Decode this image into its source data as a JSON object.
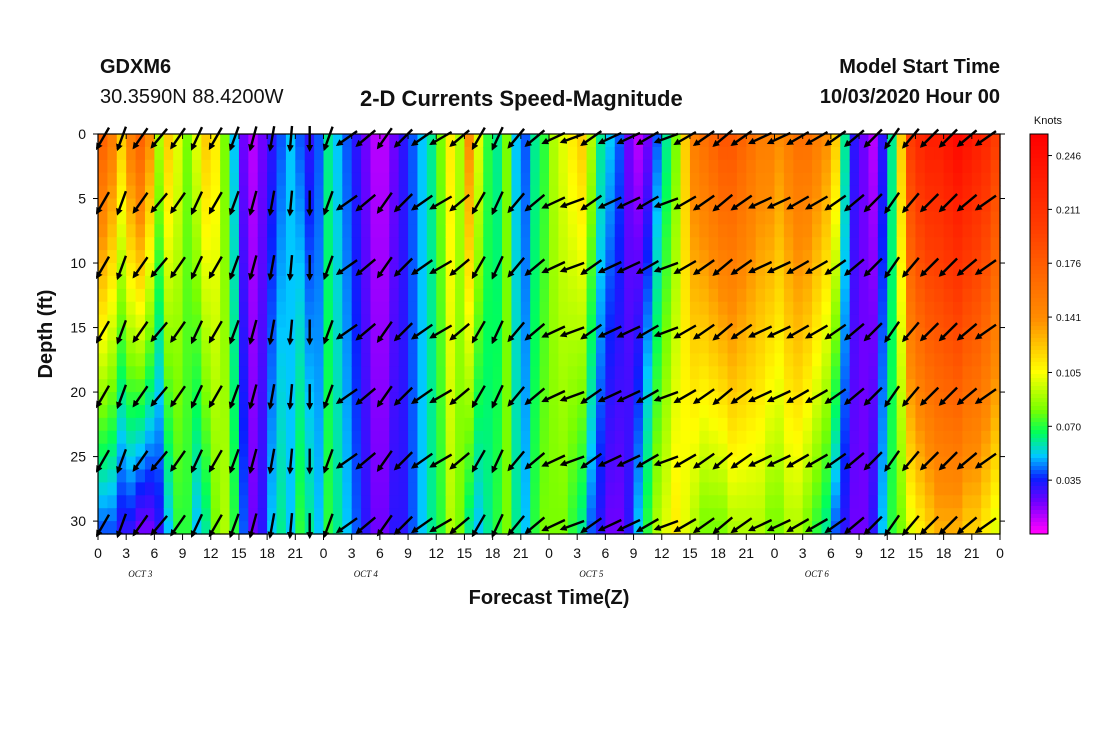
{
  "header": {
    "station": "GDXM6",
    "coords": "30.3590N 88.4200W",
    "title": "2-D Currents Speed-Magnitude",
    "model_start_label": "Model Start Time",
    "model_start_value": "10/03/2020 Hour 00"
  },
  "chart_data": {
    "type": "heatmap",
    "title": "2-D Currents Speed-Magnitude",
    "xlabel": "Forecast Time(Z)",
    "ylabel": "Depth (ft)",
    "x_tick_labels": [
      "0",
      "3",
      "6",
      "9",
      "12",
      "15",
      "18",
      "21",
      "0",
      "3",
      "6",
      "9",
      "12",
      "15",
      "18",
      "21",
      "0",
      "3",
      "6",
      "9",
      "12",
      "15",
      "18",
      "21",
      "0",
      "3",
      "6",
      "9",
      "12",
      "15",
      "18",
      "21",
      "0"
    ],
    "day_labels": [
      "OCT 3",
      "OCT 4",
      "OCT 5",
      "OCT 6"
    ],
    "y_ticks": [
      0,
      5,
      10,
      15,
      20,
      25,
      30
    ],
    "ylim": [
      31,
      0
    ],
    "xlim_hours": [
      0,
      96
    ],
    "colorbar": {
      "unit": "Knots",
      "ticks": [
        "0.246",
        "0.211",
        "0.176",
        "0.141",
        "0.105",
        "0.070",
        "0.035"
      ],
      "range": [
        0,
        0.26
      ]
    },
    "hourly_speed_surface": [
      0.17,
      0.15,
      0.12,
      0.15,
      0.17,
      0.14,
      0.09,
      0.12,
      0.1,
      0.08,
      0.1,
      0.12,
      0.11,
      0.08,
      0.05,
      0.02,
      0.01,
      0.02,
      0.03,
      0.04,
      0.05,
      0.04,
      0.03,
      0.04,
      0.06,
      0.05,
      0.04,
      0.03,
      0.02,
      0.01,
      0.01,
      0.02,
      0.03,
      0.04,
      0.05,
      0.06,
      0.08,
      0.11,
      0.09,
      0.14,
      0.1,
      0.07,
      0.06,
      0.08,
      0.05,
      0.04,
      0.06,
      0.07,
      0.09,
      0.1,
      0.11,
      0.12,
      0.09,
      0.06,
      0.05,
      0.04,
      0.02,
      0.01,
      0.02,
      0.04,
      0.06,
      0.08,
      0.12,
      0.15,
      0.16,
      0.17,
      0.18,
      0.18,
      0.17,
      0.16,
      0.15,
      0.15,
      0.14,
      0.15,
      0.16,
      0.16,
      0.15,
      0.14,
      0.12,
      0.06,
      0.03,
      0.02,
      0.01,
      0.03,
      0.06,
      0.12,
      0.2,
      0.22,
      0.23,
      0.23,
      0.24,
      0.25,
      0.24,
      0.23,
      0.22,
      0.2,
      0.18
    ],
    "hourly_speed_bottom": [
      0.04,
      0.04,
      0.03,
      0.03,
      0.02,
      0.02,
      0.03,
      0.05,
      0.07,
      0.07,
      0.05,
      0.06,
      0.08,
      0.09,
      0.07,
      0.04,
      0.02,
      0.03,
      0.05,
      0.06,
      0.05,
      0.07,
      0.06,
      0.05,
      0.07,
      0.06,
      0.05,
      0.04,
      0.03,
      0.02,
      0.02,
      0.03,
      0.03,
      0.04,
      0.05,
      0.06,
      0.07,
      0.09,
      0.08,
      0.06,
      0.05,
      0.06,
      0.07,
      0.08,
      0.06,
      0.05,
      0.07,
      0.08,
      0.08,
      0.08,
      0.07,
      0.06,
      0.04,
      0.03,
      0.02,
      0.02,
      0.03,
      0.05,
      0.07,
      0.09,
      0.1,
      0.11,
      0.1,
      0.09,
      0.08,
      0.08,
      0.08,
      0.09,
      0.09,
      0.09,
      0.09,
      0.08,
      0.08,
      0.09,
      0.09,
      0.08,
      0.07,
      0.06,
      0.04,
      0.03,
      0.02,
      0.02,
      0.03,
      0.05,
      0.07,
      0.08,
      0.1,
      0.11,
      0.12,
      0.13,
      0.13,
      0.13,
      0.12,
      0.12,
      0.11,
      0.1,
      0.1
    ],
    "vector_depths_ft": [
      0,
      5,
      10,
      15,
      20,
      25,
      30
    ],
    "vector_directions_deg": [
      210,
      200,
      215,
      220,
      215,
      205,
      210,
      200,
      195,
      190,
      185,
      180,
      200,
      235,
      230,
      215,
      225,
      235,
      240,
      230,
      210,
      205,
      220,
      230,
      245,
      250,
      235,
      245,
      245,
      240,
      250,
      240,
      235,
      230,
      235,
      245,
      245,
      240,
      240,
      235,
      230,
      225,
      215,
      220,
      225,
      225,
      230,
      235
    ]
  }
}
